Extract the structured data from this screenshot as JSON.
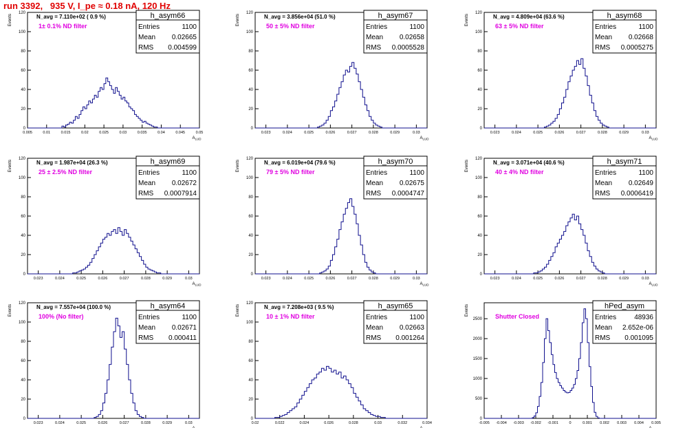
{
  "run_title": "run 3392,   935 V, I_pe ≈ 0.18 nA, 120 Hz",
  "colors": {
    "histogram": "#0d0d8c",
    "annotation": "#e000e0",
    "run_title": "#e00000",
    "frame": "#000000"
  },
  "chart_data": [
    {
      "type": "histogram",
      "name": "h_asym66",
      "stats": {
        "Entries": "1100",
        "Mean": "0.02665",
        "RMS": "0.004599"
      },
      "navg_label": "N_avg = 7.110e+02 ( 0.9 %)",
      "note": "1± 0.1% ND filter",
      "ylabel": "Events",
      "xlabel": "",
      "xlim": [
        0.005,
        0.05
      ],
      "ylim": [
        0,
        120
      ],
      "xticks": [
        "0.005",
        "0.01",
        "0.015",
        "0.02",
        "0.025",
        "0.03",
        "0.035",
        "0.04",
        "0.045",
        "0.05"
      ],
      "yticks": [
        "0",
        "20",
        "40",
        "60",
        "80",
        "100",
        "120"
      ],
      "x_start": 0.005,
      "bin_width": 0.0005,
      "values": [
        0,
        0,
        0,
        0,
        0,
        0,
        0,
        0,
        0,
        0,
        0,
        0,
        0,
        0,
        0,
        0,
        0,
        0,
        2,
        1,
        3,
        4,
        6,
        5,
        8,
        12,
        10,
        14,
        18,
        22,
        20,
        24,
        28,
        26,
        30,
        34,
        32,
        38,
        42,
        40,
        46,
        52,
        48,
        44,
        40,
        36,
        42,
        38,
        34,
        30,
        32,
        28,
        26,
        22,
        20,
        18,
        14,
        12,
        10,
        8,
        6,
        7,
        5,
        4,
        3,
        2,
        1,
        1,
        0,
        0,
        0,
        0,
        0,
        0,
        0,
        0,
        0,
        0,
        0,
        0,
        0,
        0,
        0,
        0,
        0,
        0,
        0,
        0,
        0,
        0
      ]
    },
    {
      "type": "histogram",
      "name": "h_asym67",
      "stats": {
        "Entries": "1100",
        "Mean": "0.02658",
        "RMS": "0.0005528"
      },
      "navg_label": "N_avg = 3.856e+04 (51.0 %)",
      "note": "50 ± 5% ND filter",
      "ylabel": "Events",
      "xlabel": "",
      "xlim": [
        0.0225,
        0.0305
      ],
      "ylim": [
        0,
        120
      ],
      "xticks": [
        "0.023",
        "0.024",
        "0.025",
        "0.026",
        "0.027",
        "0.028",
        "0.029",
        "0.03"
      ],
      "yticks": [
        "0",
        "20",
        "40",
        "60",
        "80",
        "100",
        "120"
      ],
      "x_start": 0.0225,
      "bin_width": 0.0001,
      "values": [
        0,
        0,
        0,
        0,
        0,
        0,
        0,
        0,
        0,
        0,
        0,
        0,
        0,
        0,
        0,
        0,
        0,
        0,
        0,
        0,
        0,
        0,
        0,
        0,
        0,
        0,
        0,
        0,
        0,
        1,
        2,
        3,
        5,
        8,
        12,
        18,
        22,
        28,
        35,
        42,
        48,
        55,
        60,
        58,
        64,
        68,
        62,
        56,
        48,
        40,
        32,
        24,
        18,
        12,
        8,
        5,
        3,
        2,
        1,
        0,
        0,
        0,
        0,
        0,
        0,
        0,
        0,
        0,
        0,
        0,
        0,
        0,
        0,
        0,
        0,
        0,
        0,
        0,
        0,
        0
      ]
    },
    {
      "type": "histogram",
      "name": "h_asym68",
      "stats": {
        "Entries": "1100",
        "Mean": "0.02668",
        "RMS": "0.0005275"
      },
      "navg_label": "N_avg = 4.809e+04 (63.6 %)",
      "note": "63 ± 5% ND filter",
      "ylabel": "Events",
      "xlabel": "",
      "xlim": [
        0.0225,
        0.0305
      ],
      "ylim": [
        0,
        120
      ],
      "xticks": [
        "0.023",
        "0.024",
        "0.025",
        "0.026",
        "0.027",
        "0.028",
        "0.029",
        "0.03"
      ],
      "yticks": [
        "0",
        "20",
        "40",
        "60",
        "80",
        "100",
        "120"
      ],
      "x_start": 0.0225,
      "bin_width": 0.0001,
      "values": [
        0,
        0,
        0,
        0,
        0,
        0,
        0,
        0,
        0,
        0,
        0,
        0,
        0,
        0,
        0,
        0,
        0,
        0,
        0,
        0,
        0,
        0,
        0,
        0,
        0,
        0,
        0,
        0,
        1,
        2,
        3,
        5,
        7,
        10,
        14,
        20,
        26,
        32,
        40,
        48,
        54,
        60,
        64,
        70,
        66,
        72,
        62,
        54,
        44,
        34,
        26,
        18,
        12,
        8,
        5,
        3,
        2,
        1,
        0,
        0,
        0,
        0,
        0,
        0,
        0,
        0,
        0,
        0,
        0,
        0,
        0,
        0,
        0,
        0,
        0,
        0,
        0,
        0,
        0,
        0
      ]
    },
    {
      "type": "histogram",
      "name": "h_asym69",
      "stats": {
        "Entries": "1100",
        "Mean": "0.02672",
        "RMS": "0.0007914"
      },
      "navg_label": "N_avg = 1.987e+04 (26.3 %)",
      "note": "25 ± 2.5% ND filter",
      "ylabel": "Events",
      "xlabel": "",
      "xlim": [
        0.0225,
        0.0305
      ],
      "ylim": [
        0,
        120
      ],
      "xticks": [
        "0.023",
        "0.024",
        "0.025",
        "0.026",
        "0.027",
        "0.028",
        "0.029",
        "0.03"
      ],
      "yticks": [
        "0",
        "20",
        "40",
        "60",
        "80",
        "100",
        "120"
      ],
      "x_start": 0.0225,
      "bin_width": 0.0001,
      "values": [
        0,
        0,
        0,
        0,
        0,
        0,
        0,
        0,
        0,
        0,
        0,
        0,
        0,
        0,
        0,
        0,
        0,
        0,
        0,
        0,
        0,
        1,
        1,
        2,
        3,
        4,
        5,
        7,
        9,
        12,
        16,
        20,
        24,
        28,
        32,
        36,
        38,
        42,
        40,
        44,
        46,
        42,
        48,
        44,
        40,
        46,
        42,
        38,
        34,
        30,
        26,
        22,
        18,
        14,
        10,
        7,
        5,
        4,
        3,
        2,
        1,
        1,
        0,
        0,
        0,
        0,
        0,
        0,
        0,
        0,
        0,
        0,
        0,
        0,
        0,
        0,
        0,
        0,
        0,
        0
      ]
    },
    {
      "type": "histogram",
      "name": "h_asym70",
      "stats": {
        "Entries": "1100",
        "Mean": "0.02675",
        "RMS": "0.0004747"
      },
      "navg_label": "N_avg = 6.019e+04 (79.6 %)",
      "note": "79 ± 5% ND filter",
      "ylabel": "Events",
      "xlabel": "",
      "xlim": [
        0.0225,
        0.0305
      ],
      "ylim": [
        0,
        120
      ],
      "xticks": [
        "0.023",
        "0.024",
        "0.025",
        "0.026",
        "0.027",
        "0.028",
        "0.029",
        "0.03"
      ],
      "yticks": [
        "0",
        "20",
        "40",
        "60",
        "80",
        "100",
        "120"
      ],
      "x_start": 0.0225,
      "bin_width": 0.0001,
      "values": [
        0,
        0,
        0,
        0,
        0,
        0,
        0,
        0,
        0,
        0,
        0,
        0,
        0,
        0,
        0,
        0,
        0,
        0,
        0,
        0,
        0,
        0,
        0,
        0,
        0,
        0,
        0,
        0,
        0,
        0,
        1,
        2,
        3,
        5,
        8,
        14,
        20,
        28,
        36,
        46,
        54,
        62,
        68,
        74,
        78,
        70,
        62,
        52,
        40,
        30,
        20,
        12,
        7,
        4,
        2,
        1,
        0,
        0,
        0,
        0,
        0,
        0,
        0,
        0,
        0,
        0,
        0,
        0,
        0,
        0,
        0,
        0,
        0,
        0,
        0,
        0,
        0,
        0,
        0,
        0
      ]
    },
    {
      "type": "histogram",
      "name": "h_asym71",
      "stats": {
        "Entries": "1100",
        "Mean": "0.02649",
        "RMS": "0.0006419"
      },
      "navg_label": "N_avg = 3.071e+04 (40.6 %)",
      "note": "40 ± 4% ND filter",
      "ylabel": "Events",
      "xlabel": "",
      "xlim": [
        0.0225,
        0.0305
      ],
      "ylim": [
        0,
        120
      ],
      "xticks": [
        "0.023",
        "0.024",
        "0.025",
        "0.026",
        "0.027",
        "0.028",
        "0.029",
        "0.03"
      ],
      "yticks": [
        "0",
        "20",
        "40",
        "60",
        "80",
        "100",
        "120"
      ],
      "x_start": 0.0225,
      "bin_width": 0.0001,
      "values": [
        0,
        0,
        0,
        0,
        0,
        0,
        0,
        0,
        0,
        0,
        0,
        0,
        0,
        0,
        0,
        0,
        0,
        0,
        0,
        0,
        0,
        0,
        0,
        1,
        1,
        2,
        3,
        5,
        7,
        10,
        14,
        18,
        22,
        28,
        32,
        36,
        40,
        44,
        50,
        54,
        58,
        62,
        56,
        60,
        52,
        46,
        40,
        32,
        24,
        18,
        12,
        8,
        5,
        3,
        2,
        1,
        0,
        0,
        0,
        0,
        0,
        0,
        0,
        0,
        0,
        0,
        0,
        0,
        0,
        0,
        0,
        0,
        0,
        0,
        0,
        0,
        0,
        0,
        0,
        0
      ]
    },
    {
      "type": "histogram",
      "name": "h_asym64",
      "stats": {
        "Entries": "1100",
        "Mean": "0.02671",
        "RMS": "0.000411"
      },
      "navg_label": "N_avg = 7.557e+04 (100.0 %)",
      "note": "100% (No filter)",
      "ylabel": "Events",
      "xlabel": "",
      "xlim": [
        0.0225,
        0.0305
      ],
      "ylim": [
        0,
        120
      ],
      "xticks": [
        "0.023",
        "0.024",
        "0.025",
        "0.026",
        "0.027",
        "0.028",
        "0.029",
        "0.03"
      ],
      "yticks": [
        "0",
        "20",
        "40",
        "60",
        "80",
        "100",
        "120"
      ],
      "x_start": 0.0225,
      "bin_width": 0.0001,
      "values": [
        0,
        0,
        0,
        0,
        0,
        0,
        0,
        0,
        0,
        0,
        0,
        0,
        0,
        0,
        0,
        0,
        0,
        0,
        0,
        0,
        0,
        0,
        0,
        0,
        0,
        0,
        0,
        0,
        0,
        0,
        0,
        1,
        2,
        4,
        8,
        16,
        26,
        40,
        56,
        74,
        90,
        104,
        96,
        84,
        90,
        72,
        56,
        40,
        26,
        16,
        8,
        4,
        2,
        1,
        0,
        0,
        0,
        0,
        0,
        0,
        0,
        0,
        0,
        0,
        0,
        0,
        0,
        0,
        0,
        0,
        0,
        0,
        0,
        0,
        0,
        0,
        0,
        0,
        0,
        0
      ]
    },
    {
      "type": "histogram",
      "name": "h_asym65",
      "stats": {
        "Entries": "1100",
        "Mean": "0.02663",
        "RMS": "0.001264"
      },
      "navg_label": "N_avg = 7.208e+03 ( 9.5 %)",
      "note": "10 ± 1% ND filter",
      "ylabel": "Events",
      "xlabel": "",
      "xlim": [
        0.02,
        0.034
      ],
      "ylim": [
        0,
        120
      ],
      "xticks": [
        "0.02",
        "0.022",
        "0.024",
        "0.026",
        "0.028",
        "0.03",
        "0.032",
        "0.034"
      ],
      "yticks": [
        "0",
        "20",
        "40",
        "60",
        "80",
        "100",
        "120"
      ],
      "x_start": 0.02,
      "bin_width": 0.0002,
      "values": [
        0,
        0,
        0,
        0,
        0,
        0,
        0,
        0,
        1,
        1,
        2,
        3,
        4,
        6,
        8,
        10,
        12,
        16,
        20,
        24,
        28,
        32,
        36,
        40,
        42,
        46,
        48,
        52,
        50,
        54,
        52,
        48,
        50,
        46,
        48,
        42,
        44,
        40,
        36,
        32,
        26,
        22,
        18,
        14,
        10,
        8,
        6,
        4,
        3,
        2,
        2,
        1,
        1,
        0,
        0,
        0,
        0,
        0,
        0,
        0,
        0,
        0,
        0,
        0,
        0,
        0,
        0,
        0,
        0,
        0
      ]
    },
    {
      "type": "histogram",
      "name": "hPed_asym",
      "stats": {
        "Entries": "48936",
        "Mean": "2.652e-06",
        "RMS": "0.001095"
      },
      "navg_label": "",
      "note": "Shutter Closed",
      "ylabel": "Events",
      "xlabel": "",
      "xlim": [
        -0.005,
        0.005
      ],
      "ylim": [
        0,
        2900
      ],
      "xticks": [
        "-0.005",
        "-0.004",
        "-0.003",
        "-0.002",
        "-0.001",
        "0",
        "0.001",
        "0.002",
        "0.003",
        "0.004",
        "0.005"
      ],
      "yticks": [
        "0",
        "500",
        "1000",
        "1500",
        "2000",
        "2500"
      ],
      "x_start": -0.005,
      "bin_width": 0.0001,
      "values": [
        0,
        0,
        0,
        0,
        0,
        0,
        0,
        0,
        0,
        0,
        0,
        0,
        0,
        0,
        0,
        0,
        0,
        0,
        0,
        0,
        0,
        0,
        0,
        0,
        0,
        0,
        0,
        0,
        20,
        60,
        140,
        300,
        550,
        900,
        1400,
        2000,
        2500,
        2200,
        1900,
        1600,
        1350,
        1150,
        1000,
        900,
        820,
        760,
        700,
        660,
        640,
        650,
        700,
        760,
        850,
        1000,
        1200,
        1500,
        1900,
        2400,
        2750,
        2500,
        1900,
        1300,
        800,
        400,
        150,
        50,
        10,
        0,
        0,
        0,
        0,
        0,
        0,
        0,
        0,
        0,
        0,
        0,
        0,
        0,
        0,
        0,
        0,
        0,
        0,
        0,
        0,
        0,
        0,
        0,
        0,
        0,
        0,
        0,
        0,
        0,
        0,
        0,
        0,
        0,
        0
      ]
    }
  ]
}
